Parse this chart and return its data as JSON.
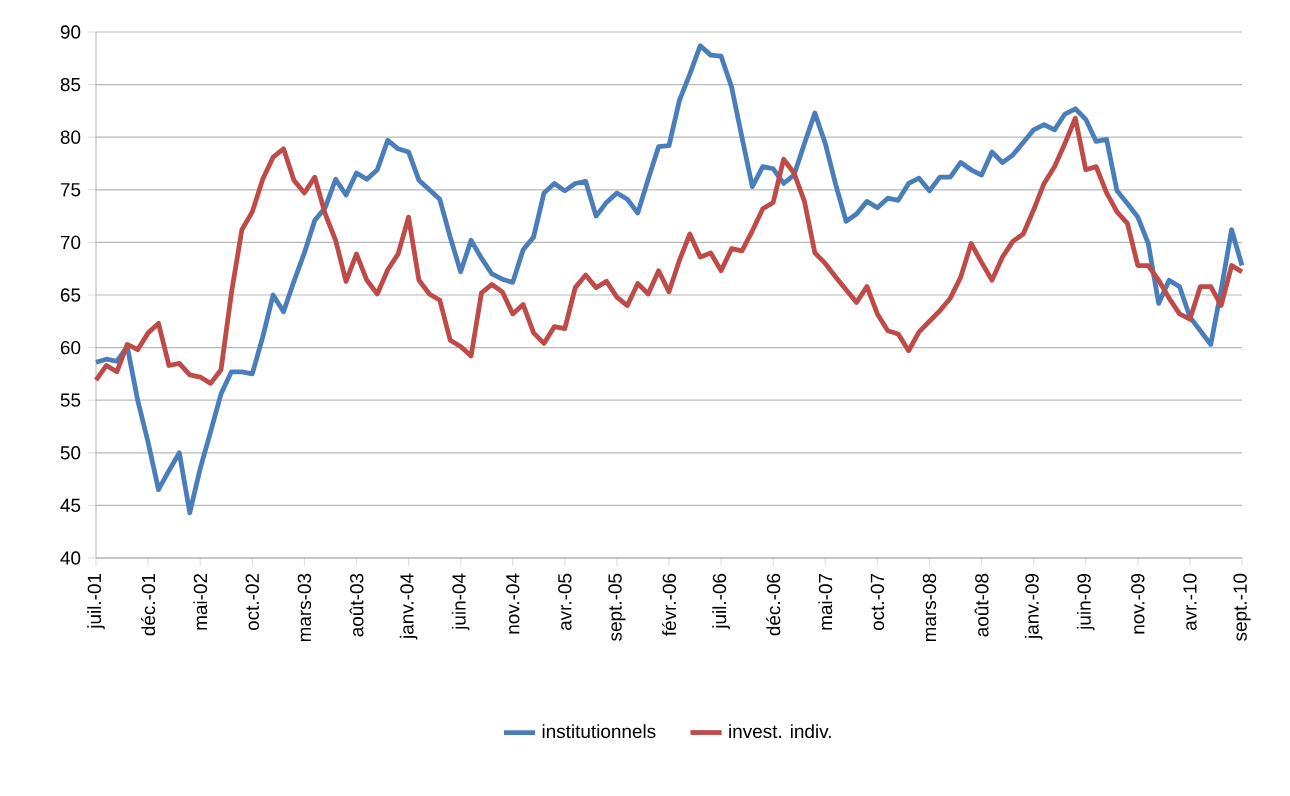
{
  "chart_data": {
    "type": "line",
    "categories": [
      "juil.-01",
      null,
      null,
      null,
      null,
      "déc.-01",
      null,
      null,
      null,
      null,
      "mai-02",
      null,
      null,
      null,
      null,
      "oct.-02",
      null,
      null,
      null,
      null,
      "mars-03",
      null,
      null,
      null,
      null,
      "août-03",
      null,
      null,
      null,
      null,
      "janv.-04",
      null,
      null,
      null,
      null,
      "juin-04",
      null,
      null,
      null,
      null,
      "nov.-04",
      null,
      null,
      null,
      null,
      "avr.-05",
      null,
      null,
      null,
      null,
      "sept.-05",
      null,
      null,
      null,
      null,
      "févr.-06",
      null,
      null,
      null,
      null,
      "juil.-06",
      null,
      null,
      null,
      null,
      "déc.-06",
      null,
      null,
      null,
      null,
      "mai-07",
      null,
      null,
      null,
      null,
      "oct.-07",
      null,
      null,
      null,
      null,
      "mars-08",
      null,
      null,
      null,
      null,
      "août-08",
      null,
      null,
      null,
      null,
      "janv.-09",
      null,
      null,
      null,
      null,
      "juin-09",
      null,
      null,
      null,
      null,
      "nov.-09",
      null,
      null,
      null,
      null,
      "avr.-10",
      null,
      null,
      null,
      null,
      "sept.-10"
    ],
    "series": [
      {
        "name": "institutionnels",
        "color": "#4a7ebb",
        "values": [
          58.6,
          58.9,
          58.7,
          60.1,
          55,
          51,
          46.5,
          48.3,
          50,
          44.3,
          48.5,
          52,
          55.6,
          57.7,
          57.7,
          57.5,
          61,
          65,
          63.4,
          66.3,
          69,
          72.1,
          73.3,
          76,
          74.5,
          76.6,
          76,
          76.9,
          79.7,
          78.9,
          78.6,
          75.9,
          75,
          74.1,
          70.5,
          67.2,
          70.2,
          68.5,
          67,
          66.5,
          66.2,
          69.3,
          70.5,
          74.7,
          75.6,
          74.9,
          75.6,
          75.8,
          72.5,
          73.8,
          74.7,
          74.1,
          72.8,
          76,
          79.1,
          79.2,
          83.5,
          86,
          88.7,
          87.8,
          87.7,
          84.8,
          80,
          75.3,
          77.2,
          77,
          75.6,
          76.4,
          79.4,
          82.3,
          79.4,
          75.5,
          72,
          72.7,
          73.9,
          73.3,
          74.2,
          74,
          75.6,
          76.1,
          74.9,
          76.2,
          76.2,
          77.6,
          76.9,
          76.4,
          78.6,
          77.6,
          78.3,
          79.5,
          80.7,
          81.2,
          80.7,
          82.2,
          82.7,
          81.7,
          79.6,
          79.8,
          74.9,
          73.7,
          72.4,
          69.9,
          64.2,
          66.4,
          65.8,
          62.9,
          61.6,
          60.3,
          65.5,
          71.2,
          67.8
        ]
      },
      {
        "name": "invest. indiv.",
        "color": "#be4b48",
        "values": [
          56.9,
          58.3,
          57.7,
          60.3,
          59.8,
          61.4,
          62.3,
          58.3,
          58.5,
          57.4,
          57.2,
          56.6,
          57.9,
          65.2,
          71.2,
          72.9,
          76,
          78.1,
          78.9,
          75.9,
          74.7,
          76.2,
          72.7,
          70.2,
          66.3,
          68.9,
          66.4,
          65.1,
          67.4,
          68.9,
          72.4,
          66.4,
          65.1,
          64.5,
          60.7,
          60.1,
          59.2,
          65.2,
          66,
          65.3,
          63.2,
          64.1,
          61.4,
          60.4,
          62,
          61.8,
          65.7,
          66.9,
          65.7,
          66.3,
          64.8,
          64,
          66.1,
          65.1,
          67.3,
          65.3,
          68.3,
          70.8,
          68.6,
          69,
          67.3,
          69.4,
          69.2,
          71.1,
          73.2,
          73.8,
          77.9,
          76.6,
          73.9,
          69,
          68,
          66.7,
          65.5,
          64.3,
          65.8,
          63.2,
          61.6,
          61.3,
          59.7,
          61.5,
          62.5,
          63.5,
          64.7,
          66.7,
          69.9,
          68.1,
          66.4,
          68.6,
          70.1,
          70.8,
          73.1,
          75.6,
          77.2,
          79.4,
          81.8,
          76.9,
          77.2,
          74.7,
          72.9,
          71.8,
          67.8,
          67.8,
          66.4,
          64.7,
          63.2,
          62.7,
          65.8,
          65.8,
          64,
          67.8,
          67.2
        ]
      }
    ],
    "ylim": [
      40,
      90
    ],
    "yticks": [
      40,
      45,
      50,
      55,
      60,
      65,
      70,
      75,
      80,
      85,
      90
    ],
    "grid": "y",
    "legend": "bottom"
  }
}
